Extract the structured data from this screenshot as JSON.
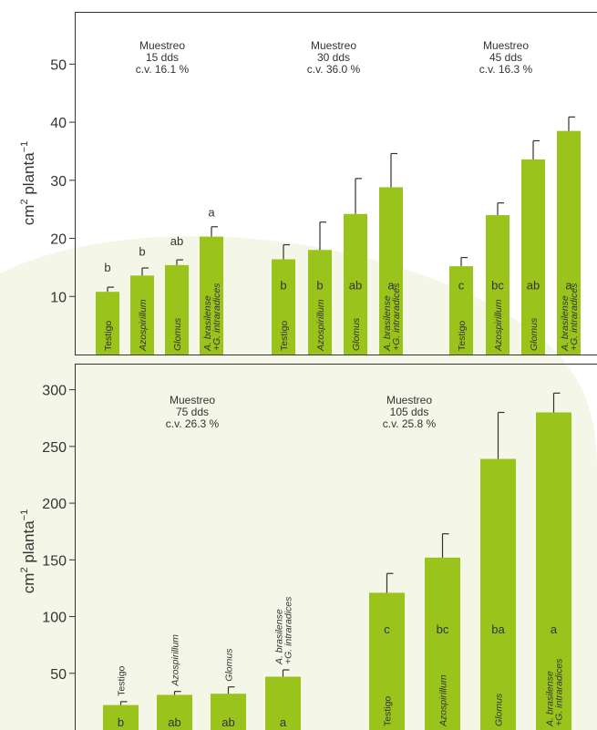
{
  "colors": {
    "bar": "#9ac31c",
    "error": "#333333",
    "frame": "#333333",
    "blob": "#f4f6e8"
  },
  "chart_data": [
    {
      "type": "bar",
      "ylabel": "cm² planta⁻¹",
      "ylabel_base": "cm",
      "ylabel_sup": "2",
      "ylabel_mid": " planta",
      "ylabel_sup2": "−1",
      "ylim": [
        0,
        59
      ],
      "yticks": [
        10,
        20,
        30,
        40,
        50
      ],
      "categories": [
        "Testigo",
        "Azospirillum",
        "Glomus",
        "A. brasilense +G. intraradices"
      ],
      "groups": [
        {
          "annotation": [
            "Muestreo",
            "15 dds",
            "c.v. 16.1 %"
          ],
          "values": [
            10.8,
            13.6,
            15.4,
            20.3
          ],
          "errors": [
            0.8,
            1.3,
            0.9,
            1.7
          ],
          "letters": [
            "b",
            "b",
            "ab",
            "a"
          ],
          "letter_pos": "above"
        },
        {
          "annotation": [
            "Muestreo",
            "30 dds",
            "c.v. 36.0 %"
          ],
          "values": [
            16.4,
            18.0,
            24.2,
            28.8
          ],
          "errors": [
            2.5,
            4.8,
            6.1,
            5.8
          ],
          "letters": [
            "b",
            "b",
            "ab",
            "a"
          ],
          "letter_pos": "inside"
        },
        {
          "annotation": [
            "Muestreo",
            "45 dds",
            "c.v. 16.3 %"
          ],
          "values": [
            15.2,
            24.0,
            33.6,
            38.5
          ],
          "errors": [
            1.5,
            2.1,
            3.2,
            2.4
          ],
          "letters": [
            "c",
            "bc",
            "ab",
            "a"
          ],
          "letter_pos": "inside"
        }
      ]
    },
    {
      "type": "bar",
      "ylabel": "cm² planta⁻¹",
      "ylabel_base": "cm",
      "ylabel_sup": "2",
      "ylabel_mid": " planta",
      "ylabel_sup2": "−1",
      "ylim": [
        0,
        323
      ],
      "yticks": [
        50,
        100,
        150,
        200,
        250,
        300
      ],
      "categories": [
        "Testigo",
        "Azospirillum",
        "Glomus",
        "A. brasilense +G. intraradices"
      ],
      "groups": [
        {
          "annotation": [
            "Muestreo",
            "75 dds",
            "c.v. 26.3 %"
          ],
          "values": [
            22,
            31,
            32,
            47
          ],
          "errors": [
            3,
            3,
            6,
            6
          ],
          "letters": [
            "b",
            "ab",
            "ab",
            "a"
          ],
          "letter_pos": "inside",
          "cat_pos": "above"
        },
        {
          "annotation": [
            "Muestreo",
            "105 dds",
            "c.v. 25.8 %"
          ],
          "values": [
            121,
            152,
            239,
            280
          ],
          "errors": [
            17,
            21,
            41,
            17
          ],
          "letters": [
            "c",
            "bc",
            "ba",
            "a"
          ],
          "letter_pos": "inside",
          "cat_pos": "inside"
        }
      ]
    }
  ]
}
